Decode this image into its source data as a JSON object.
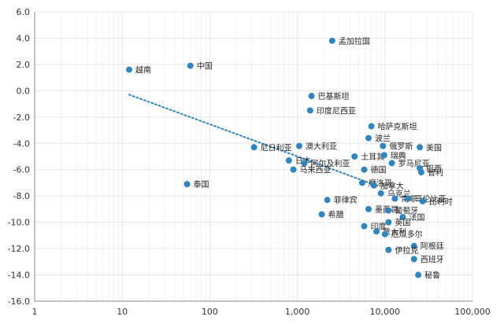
{
  "chart_data": {
    "type": "scatter",
    "x_scale": "log",
    "xlim": [
      1,
      100000
    ],
    "ylim": [
      -16,
      6
    ],
    "x_ticks": [
      "1",
      "10",
      "100",
      "1,000",
      "10,000",
      "100,000"
    ],
    "y_ticks": [
      "6.0",
      "4.0",
      "2.0",
      "0.0",
      "-2.0",
      "-4.0",
      "-6.0",
      "-8.0",
      "-10.0",
      "-12.0",
      "-14.0",
      "-16.0"
    ],
    "grid": true,
    "marker_color": "#2e86c1",
    "trendline": {
      "style": "dotted",
      "color": "#2e86c1",
      "x": [
        12,
        8000
      ],
      "y": [
        -0.3,
        -7.2
      ]
    },
    "points": [
      {
        "label": "孟加拉国",
        "x": 2500,
        "y": 3.8
      },
      {
        "label": "越南",
        "x": 12,
        "y": 1.6
      },
      {
        "label": "中国",
        "x": 60,
        "y": 1.9
      },
      {
        "label": "巴基斯坦",
        "x": 1450,
        "y": -0.4
      },
      {
        "label": "印度尼西亚",
        "x": 1400,
        "y": -1.5
      },
      {
        "label": "哈萨克斯坦",
        "x": 7000,
        "y": -2.7
      },
      {
        "label": "尼日利亚",
        "x": 320,
        "y": -4.3
      },
      {
        "label": "波兰",
        "x": 6500,
        "y": -3.6
      },
      {
        "label": "澳大利亚",
        "x": 1050,
        "y": -4.2
      },
      {
        "label": "俄罗斯",
        "x": 9500,
        "y": -4.2
      },
      {
        "label": "美国",
        "x": 25000,
        "y": -4.3
      },
      {
        "label": "土耳其",
        "x": 4500,
        "y": -5.0
      },
      {
        "label": "瑞典",
        "x": 9800,
        "y": -4.9
      },
      {
        "label": "日本",
        "x": 800,
        "y": -5.3
      },
      {
        "label": "阿尔及利亚",
        "x": 1200,
        "y": -5.5
      },
      {
        "label": "罗马尼亚",
        "x": 12000,
        "y": -5.5
      },
      {
        "label": "巴西",
        "x": 25000,
        "y": -5.9
      },
      {
        "label": "马来西亚",
        "x": 900,
        "y": -6.0
      },
      {
        "label": "德国",
        "x": 5800,
        "y": -6.0
      },
      {
        "label": "智利",
        "x": 26000,
        "y": -6.2
      },
      {
        "label": "泰国",
        "x": 55,
        "y": -7.1
      },
      {
        "label": "摩洛哥",
        "x": 5500,
        "y": -7.0
      },
      {
        "label": "加拿大",
        "x": 7500,
        "y": -7.2
      },
      {
        "label": "乌克兰",
        "x": 9000,
        "y": -7.8
      },
      {
        "label": "南非",
        "x": 13000,
        "y": -8.2
      },
      {
        "label": "哥伦比亚",
        "x": 18500,
        "y": -8.2
      },
      {
        "label": "菲律宾",
        "x": 2200,
        "y": -8.3
      },
      {
        "label": "比利时",
        "x": 27000,
        "y": -8.4
      },
      {
        "label": "墨西哥",
        "x": 6500,
        "y": -9.0
      },
      {
        "label": "葡萄牙",
        "x": 11000,
        "y": -9.1
      },
      {
        "label": "希腊",
        "x": 1900,
        "y": -9.4
      },
      {
        "label": "法国",
        "x": 16000,
        "y": -9.6
      },
      {
        "label": "英国",
        "x": 11000,
        "y": -10.0
      },
      {
        "label": "印度",
        "x": 5800,
        "y": -10.3
      },
      {
        "label": "意大利",
        "x": 8000,
        "y": -10.7
      },
      {
        "label": "厄瓜多尔",
        "x": 10000,
        "y": -10.9
      },
      {
        "label": "阿根廷",
        "x": 21500,
        "y": -11.8
      },
      {
        "label": "伊拉克",
        "x": 11000,
        "y": -12.1
      },
      {
        "label": "西班牙",
        "x": 21500,
        "y": -12.8
      },
      {
        "label": "秘鲁",
        "x": 24000,
        "y": -14.0
      }
    ]
  }
}
